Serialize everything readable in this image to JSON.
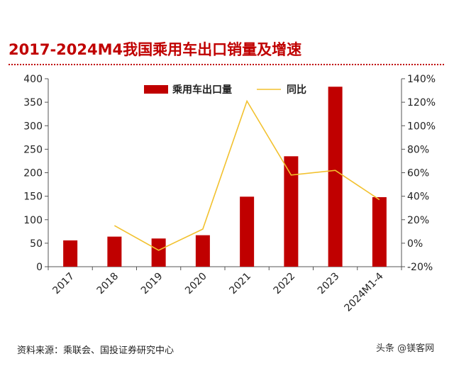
{
  "title": "2017-2024M4我国乘用车出口销量及增速",
  "source": "资料来源：乘联会、国投证券研究中心",
  "watermark": "头条 @镁客网",
  "chart_data": {
    "type": "bar",
    "categories": [
      "2017",
      "2018",
      "2019",
      "2020",
      "2021",
      "2022",
      "2023",
      "2024M1-4"
    ],
    "series": [
      {
        "name": "乘用车出口量",
        "type": "bar",
        "axis": "left",
        "color": "#c00000",
        "values": [
          56,
          64,
          60,
          67,
          149,
          235,
          383,
          148
        ]
      },
      {
        "name": "同比",
        "type": "line",
        "axis": "right",
        "color": "#f2c12e",
        "values": [
          null,
          0.15,
          -0.06,
          0.12,
          1.21,
          0.58,
          0.62,
          0.37
        ]
      }
    ],
    "y_left": {
      "ylim": [
        0,
        400
      ],
      "ticks": [
        0,
        50,
        100,
        150,
        200,
        250,
        300,
        350,
        400
      ]
    },
    "y_right": {
      "ylim": [
        -0.2,
        1.4
      ],
      "ticks": [
        -0.2,
        0,
        0.2,
        0.4,
        0.6,
        0.8,
        1.0,
        1.2,
        1.4
      ],
      "tick_labels": [
        "-20%",
        "0%",
        "20%",
        "40%",
        "60%",
        "80%",
        "100%",
        "120%",
        "140%"
      ]
    },
    "xlabel": "",
    "ylabel": "",
    "legend": "top-center",
    "grid": false
  }
}
